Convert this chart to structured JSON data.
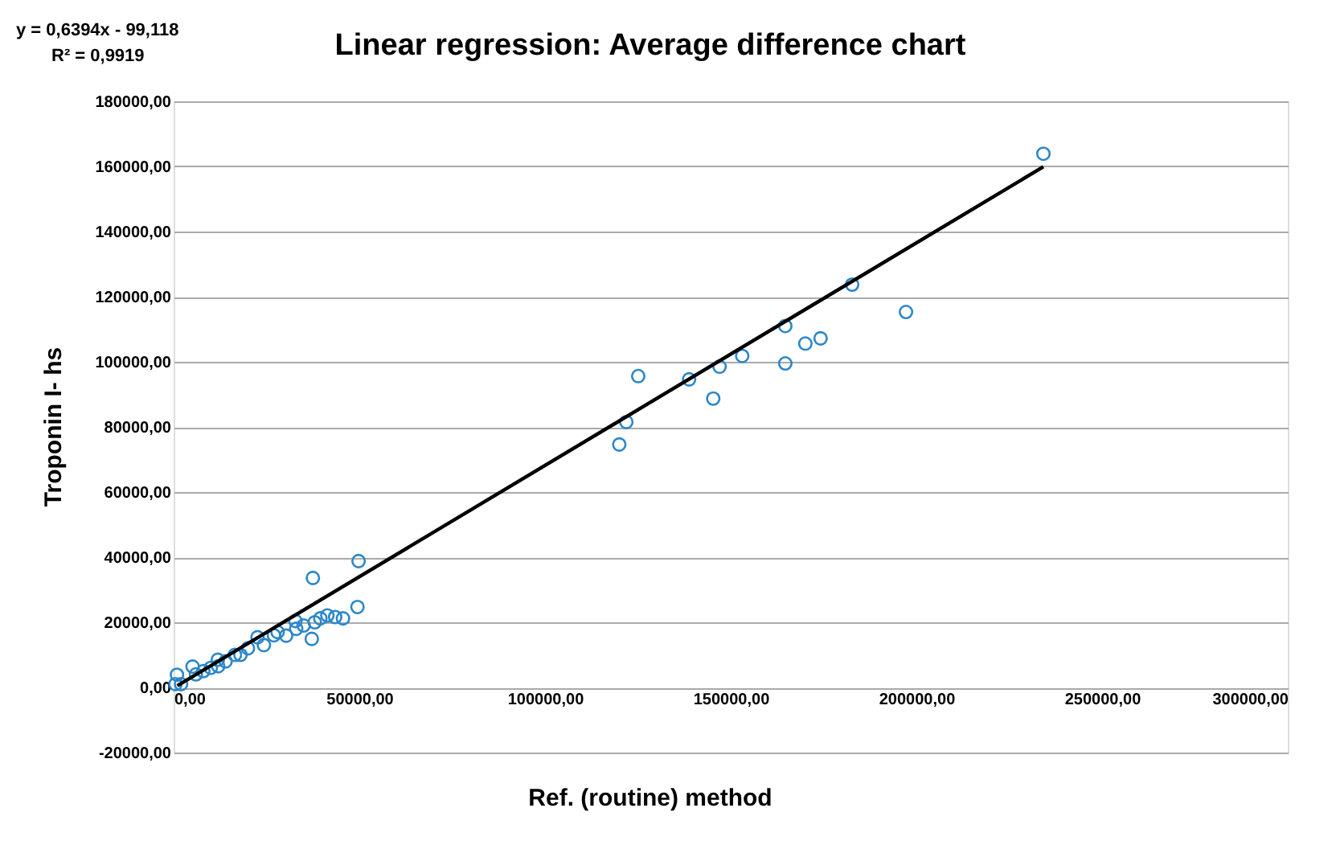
{
  "chart_data": {
    "type": "scatter",
    "title": "Linear regression: Average difference chart",
    "xlabel": "Ref. (routine) method",
    "ylabel": "Troponin I- hs",
    "annotations": [
      "y = 0,6394x  - 99,118",
      "R² = 0,9919"
    ],
    "xlim": [
      0,
      300000
    ],
    "ylim": [
      -20000,
      180000
    ],
    "xticks": [
      {
        "value": 0,
        "label": "0,00"
      },
      {
        "value": 50000,
        "label": "50000,00"
      },
      {
        "value": 100000,
        "label": "100000,00"
      },
      {
        "value": 150000,
        "label": "150000,00"
      },
      {
        "value": 200000,
        "label": "200000,00"
      },
      {
        "value": 250000,
        "label": "250000,00"
      },
      {
        "value": 300000,
        "label": "300000,00"
      }
    ],
    "yticks": [
      {
        "value": -20000,
        "label": "-20000,00"
      },
      {
        "value": 0,
        "label": "0,00"
      },
      {
        "value": 20000,
        "label": "20000,00"
      },
      {
        "value": 40000,
        "label": "40000,00"
      },
      {
        "value": 60000,
        "label": "60000,00"
      },
      {
        "value": 80000,
        "label": "80000,00"
      },
      {
        "value": 100000,
        "label": "100000,00"
      },
      {
        "value": 120000,
        "label": "120000,00"
      },
      {
        "value": 140000,
        "label": "140000,00"
      },
      {
        "value": 160000,
        "label": "160000,00"
      },
      {
        "value": 180000,
        "label": "180000,00"
      }
    ],
    "grid": "y",
    "legend": false,
    "series": [
      {
        "marker": "circle",
        "color": "#2c87c9",
        "x": [
          500,
          2000,
          6000,
          8000,
          10000,
          12000,
          14000,
          18000,
          20000,
          27000,
          28000,
          33000,
          35000,
          38000,
          900,
          5100,
          11900,
          16500,
          24300,
          22600,
          30300,
          32800,
          37200,
          39500,
          41400,
          43500,
          45600,
          37500,
          49800,
          49500,
          120000,
          121900,
          125100,
          138800,
          145300,
          147000,
          153100,
          164700,
          164700,
          170100,
          174200,
          182700,
          197200,
          234200
        ],
        "values": [
          1000,
          1000,
          4000,
          5000,
          6000,
          6500,
          8000,
          10000,
          12000,
          16000,
          17000,
          18000,
          19000,
          20000,
          3900,
          6400,
          8500,
          10000,
          13000,
          15400,
          15900,
          20400,
          14900,
          21200,
          22100,
          21600,
          21200,
          33600,
          38800,
          24700,
          74600,
          81500,
          95600,
          94600,
          88700,
          98500,
          101800,
          111000,
          99500,
          105600,
          107200,
          123700,
          115300,
          163900
        ]
      },
      {
        "type": "line",
        "marker": "none",
        "line_style": "solid",
        "color": "#000000",
        "x": [
          1000,
          234200
        ],
        "values": [
          500,
          159900
        ]
      }
    ]
  }
}
